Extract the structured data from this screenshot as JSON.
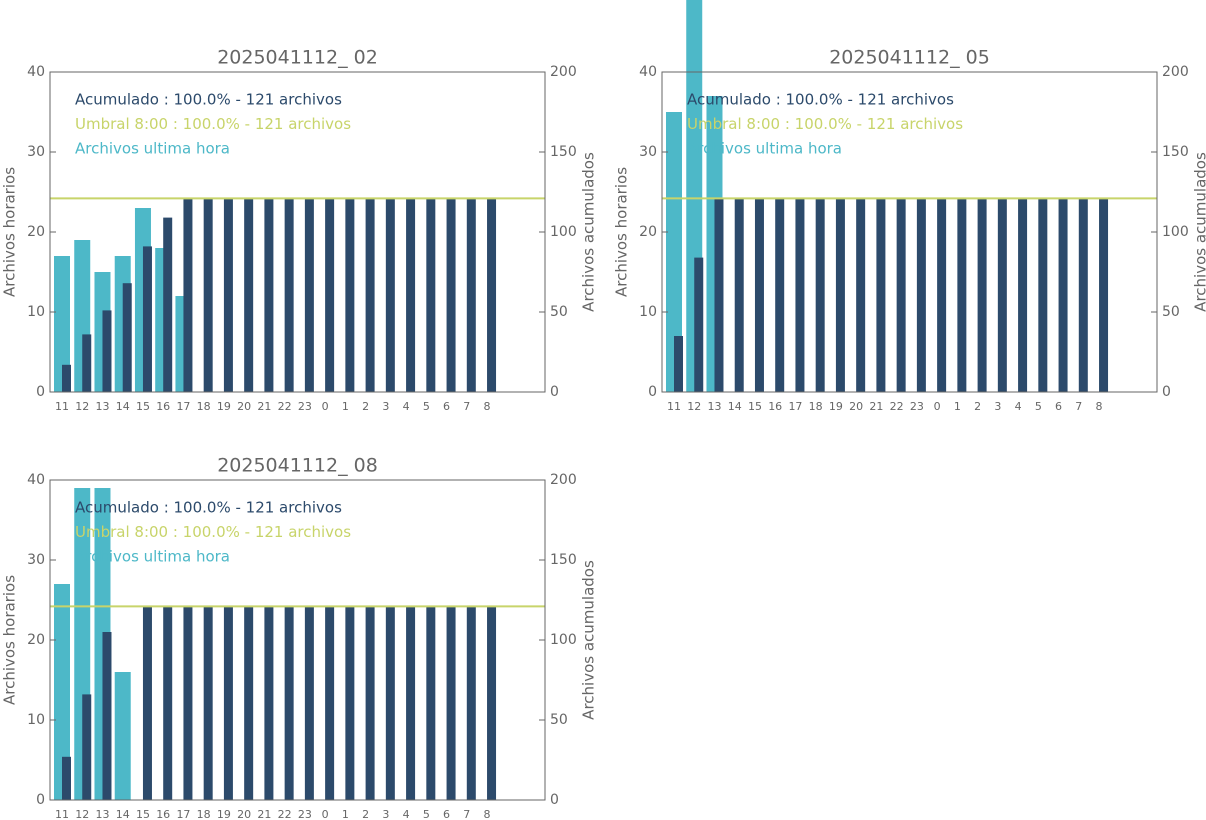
{
  "chart_data": [
    {
      "type": "bar",
      "title": "2025041112_ 02",
      "ylabel": "Archivos horarios",
      "y2label": "Archivos acumulados",
      "categories": [
        "11",
        "12",
        "13",
        "14",
        "15",
        "16",
        "17",
        "18",
        "19",
        "20",
        "21",
        "22",
        "23",
        "0",
        "1",
        "2",
        "3",
        "4",
        "5",
        "6",
        "7",
        "8"
      ],
      "ylim": [
        0,
        40
      ],
      "yticks": [
        0,
        10,
        20,
        30,
        40
      ],
      "y2lim": [
        0,
        200
      ],
      "y2ticks": [
        0,
        50,
        100,
        150,
        200
      ],
      "series": [
        {
          "name": "Acumulado : 100.0% - 121 archivos",
          "color": "#2c4a6b",
          "axis": "y2",
          "values": [
            17,
            36,
            51,
            68,
            91,
            109,
            121,
            121,
            121,
            121,
            121,
            121,
            121,
            121,
            121,
            121,
            121,
            121,
            121,
            121,
            121,
            121
          ]
        },
        {
          "name": "Archivos ultima hora",
          "color": "#4db8c8",
          "values": [
            17,
            19,
            15,
            17,
            23,
            18,
            12,
            null,
            null,
            null,
            null,
            null,
            null,
            null,
            null,
            null,
            null,
            null,
            null,
            null,
            null,
            null
          ]
        }
      ],
      "threshold": {
        "name": "Umbral 8:00 : 100.0% - 121 archivos",
        "value": 121,
        "axis": "y2",
        "color": "#c8d46a"
      }
    },
    {
      "type": "bar",
      "title": "2025041112_ 05",
      "ylabel": "Archivos horarios",
      "y2label": "Archivos acumulados",
      "categories": [
        "11",
        "12",
        "13",
        "14",
        "15",
        "16",
        "17",
        "18",
        "19",
        "20",
        "21",
        "22",
        "23",
        "0",
        "1",
        "2",
        "3",
        "4",
        "5",
        "6",
        "7",
        "8"
      ],
      "ylim": [
        0,
        40
      ],
      "yticks": [
        0,
        10,
        20,
        30,
        40
      ],
      "y2lim": [
        0,
        200
      ],
      "y2ticks": [
        0,
        50,
        100,
        150,
        200
      ],
      "series": [
        {
          "name": "Acumulado : 100.0% - 121 archivos",
          "color": "#2c4a6b",
          "axis": "y2",
          "values": [
            35,
            84,
            121,
            121,
            121,
            121,
            121,
            121,
            121,
            121,
            121,
            121,
            121,
            121,
            121,
            121,
            121,
            121,
            121,
            121,
            121,
            121
          ]
        },
        {
          "name": "Archivos ultima hora",
          "color": "#4db8c8",
          "values": [
            35,
            49,
            37,
            null,
            null,
            null,
            null,
            null,
            null,
            null,
            null,
            null,
            null,
            null,
            null,
            null,
            null,
            null,
            null,
            null,
            null,
            null
          ]
        }
      ],
      "threshold": {
        "name": "Umbral 8:00 : 100.0% - 121 archivos",
        "value": 121,
        "axis": "y2",
        "color": "#c8d46a"
      }
    },
    {
      "type": "bar",
      "title": "2025041112_ 08",
      "ylabel": "Archivos horarios",
      "y2label": "Archivos acumulados",
      "categories": [
        "11",
        "12",
        "13",
        "14",
        "15",
        "16",
        "17",
        "18",
        "19",
        "20",
        "21",
        "22",
        "23",
        "0",
        "1",
        "2",
        "3",
        "4",
        "5",
        "6",
        "7",
        "8"
      ],
      "ylim": [
        0,
        40
      ],
      "yticks": [
        0,
        10,
        20,
        30,
        40
      ],
      "y2lim": [
        0,
        200
      ],
      "y2ticks": [
        0,
        50,
        100,
        150,
        200
      ],
      "series": [
        {
          "name": "Acumulado : 100.0% - 121 archivos",
          "color": "#2c4a6b",
          "axis": "y2",
          "values": [
            27,
            66,
            105,
            null,
            121,
            121,
            121,
            121,
            121,
            121,
            121,
            121,
            121,
            121,
            121,
            121,
            121,
            121,
            121,
            121,
            121,
            121
          ]
        },
        {
          "name": "Archivos ultima hora",
          "color": "#4db8c8",
          "values": [
            27,
            39,
            39,
            16,
            null,
            null,
            null,
            null,
            null,
            null,
            null,
            null,
            null,
            null,
            null,
            null,
            null,
            null,
            null,
            null,
            null,
            null
          ]
        }
      ],
      "threshold": {
        "name": "Umbral 8:00 : 100.0% - 121 archivos",
        "value": 121,
        "axis": "y2",
        "color": "#c8d46a"
      }
    }
  ]
}
